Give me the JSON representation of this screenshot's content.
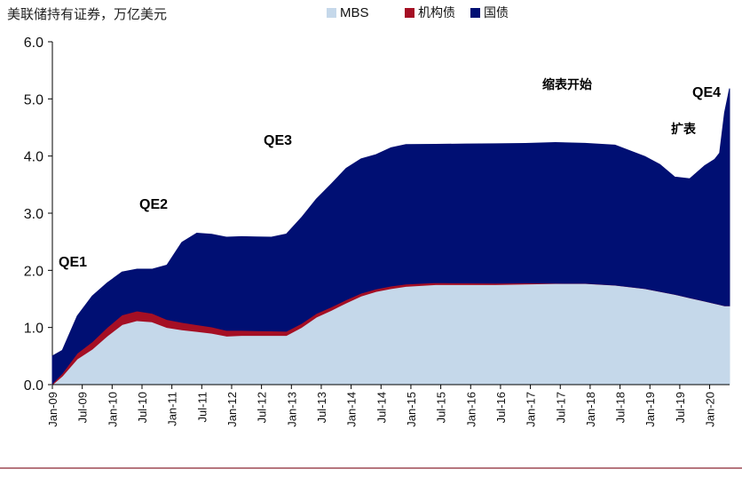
{
  "chart_data": {
    "type": "area",
    "stacked": true,
    "unit_label": "美联储持有证券，万亿美元",
    "colors": {
      "MBS": "#c5d8ea",
      "机构债": "#a50f24",
      "国债": "#000f73"
    },
    "ylim": [
      0,
      6
    ],
    "yticks": [
      "0.0",
      "1.0",
      "2.0",
      "3.0",
      "4.0",
      "5.0",
      "6.0"
    ],
    "xlim": [
      "2009-01",
      "2020-05"
    ],
    "xtick_labels": [
      "Jan-09",
      "Jul-09",
      "Jan-10",
      "Jul-10",
      "Jan-11",
      "Jul-11",
      "Jan-12",
      "Jul-12",
      "Jan-13",
      "Jul-13",
      "Jan-14",
      "Jul-14",
      "Jan-15",
      "Jul-15",
      "Jan-16",
      "Jul-16",
      "Jan-17",
      "Jul-17",
      "Jan-18",
      "Jul-18",
      "Jan-19",
      "Jul-19",
      "Jan-20"
    ],
    "x": [
      "2009-01",
      "2009-03",
      "2009-06",
      "2009-09",
      "2009-12",
      "2010-03",
      "2010-06",
      "2010-09",
      "2010-12",
      "2011-03",
      "2011-06",
      "2011-09",
      "2011-12",
      "2012-03",
      "2012-06",
      "2012-09",
      "2012-12",
      "2013-03",
      "2013-06",
      "2013-09",
      "2013-12",
      "2014-03",
      "2014-06",
      "2014-09",
      "2014-12",
      "2015-06",
      "2015-12",
      "2016-06",
      "2016-12",
      "2017-06",
      "2017-12",
      "2018-06",
      "2018-12",
      "2019-03",
      "2019-06",
      "2019-09",
      "2019-12",
      "2020-02",
      "2020-03",
      "2020-04",
      "2020-05"
    ],
    "series": [
      {
        "name": "MBS",
        "values": [
          0.0,
          0.15,
          0.45,
          0.62,
          0.85,
          1.05,
          1.12,
          1.1,
          1.0,
          0.96,
          0.93,
          0.9,
          0.85,
          0.86,
          0.86,
          0.86,
          0.86,
          1.0,
          1.18,
          1.3,
          1.43,
          1.55,
          1.63,
          1.68,
          1.72,
          1.75,
          1.75,
          1.75,
          1.76,
          1.77,
          1.77,
          1.74,
          1.68,
          1.63,
          1.58,
          1.52,
          1.46,
          1.42,
          1.4,
          1.38,
          1.38
        ]
      },
      {
        "name": "机构债",
        "values": [
          0.02,
          0.05,
          0.1,
          0.13,
          0.15,
          0.17,
          0.17,
          0.15,
          0.14,
          0.13,
          0.12,
          0.11,
          0.1,
          0.09,
          0.085,
          0.08,
          0.075,
          0.07,
          0.065,
          0.06,
          0.055,
          0.05,
          0.045,
          0.045,
          0.04,
          0.035,
          0.03,
          0.025,
          0.02,
          0.005,
          0.003,
          0.002,
          0.002,
          0.002,
          0.002,
          0.002,
          0.002,
          0.002,
          0.002,
          0.002,
          0.002
        ]
      },
      {
        "name": "国债",
        "values": [
          0.48,
          0.4,
          0.65,
          0.8,
          0.78,
          0.75,
          0.73,
          0.77,
          0.95,
          1.4,
          1.6,
          1.62,
          1.63,
          1.64,
          1.64,
          1.64,
          1.7,
          1.85,
          2.0,
          2.15,
          2.3,
          2.35,
          2.35,
          2.42,
          2.44,
          2.42,
          2.43,
          2.44,
          2.44,
          2.46,
          2.45,
          2.45,
          2.31,
          2.22,
          2.05,
          2.08,
          2.37,
          2.52,
          2.65,
          3.38,
          3.8
        ]
      }
    ],
    "annotations": [
      "QE1",
      "QE2",
      "QE3",
      "缩表开始",
      "扩表",
      "QE4"
    ]
  }
}
